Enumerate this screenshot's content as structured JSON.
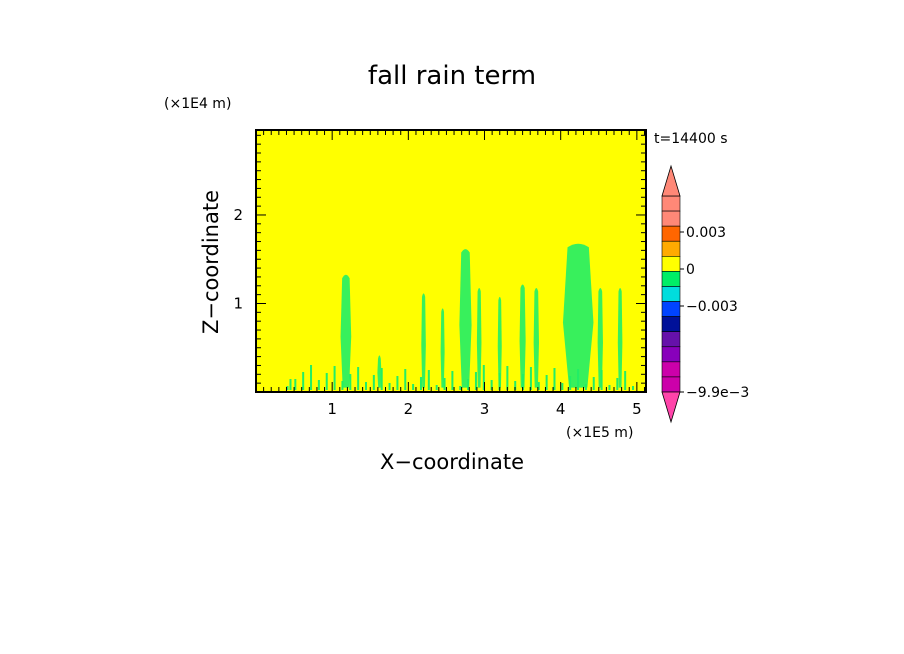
{
  "chart_data": {
    "type": "heatmap",
    "title": "fall rain term",
    "xlabel": "X−coordinate",
    "ylabel": "Z−coordinate",
    "x_unit": "(×1E5 m)",
    "y_unit": "(×1E4 m)",
    "time_label": "t=14400 s",
    "xlim": [
      0,
      5.12
    ],
    "ylim": [
      0,
      2.96
    ],
    "x_ticks": [
      {
        "value": 1,
        "label": "1"
      },
      {
        "value": 2,
        "label": "2"
      },
      {
        "value": 3,
        "label": "3"
      },
      {
        "value": 4,
        "label": "4"
      },
      {
        "value": 5,
        "label": "5"
      }
    ],
    "y_ticks": [
      {
        "value": 1,
        "label": "1"
      },
      {
        "value": 2,
        "label": "2"
      }
    ],
    "background_level": "0 to 0.0015",
    "background_color": "#ffff00",
    "colorbar": {
      "levels": [
        {
          "color": "#cc00aa"
        },
        {
          "color": "#cc00aa"
        },
        {
          "color": "#8800bb"
        },
        {
          "color": "#6611aa"
        },
        {
          "color": "#001199"
        },
        {
          "color": "#0044ff"
        },
        {
          "color": "#00dddd"
        },
        {
          "color": "#00ee66"
        },
        {
          "color": "#ffff00"
        },
        {
          "color": "#ffaa00"
        },
        {
          "color": "#ff6600"
        },
        {
          "color": "#ff8877"
        },
        {
          "color": "#ff8877"
        }
      ],
      "labels": [
        {
          "value": 0.003,
          "label": "0.003"
        },
        {
          "value": 0,
          "label": "0"
        },
        {
          "value": -0.003,
          "label": "−0.003"
        },
        {
          "value": -0.0099,
          "label": "−9.9e−3"
        }
      ],
      "min_triangle_color": "#ff44aa",
      "max_triangle_color": "#ff8877"
    },
    "features": [
      {
        "x": 1.18,
        "z_bottom": 0.05,
        "z_top": 1.33,
        "width": 0.14,
        "level": "slightly negative (green)"
      },
      {
        "x": 1.62,
        "z_bottom": 0.05,
        "z_top": 0.42,
        "width": 0.04,
        "level": "slightly negative (green)"
      },
      {
        "x": 2.2,
        "z_bottom": 0.05,
        "z_top": 1.12,
        "width": 0.06,
        "level": "slightly negative (green)"
      },
      {
        "x": 2.45,
        "z_bottom": 0.05,
        "z_top": 0.95,
        "width": 0.05,
        "level": "slightly negative (green)"
      },
      {
        "x": 2.75,
        "z_bottom": 0.05,
        "z_top": 1.62,
        "width": 0.16,
        "level": "slightly negative (green)"
      },
      {
        "x": 2.93,
        "z_bottom": 0.05,
        "z_top": 1.18,
        "width": 0.06,
        "level": "slightly negative (green)"
      },
      {
        "x": 3.2,
        "z_bottom": 0.05,
        "z_top": 1.08,
        "width": 0.05,
        "level": "slightly negative (green)"
      },
      {
        "x": 3.5,
        "z_bottom": 0.05,
        "z_top": 1.22,
        "width": 0.08,
        "level": "slightly negative (green)"
      },
      {
        "x": 3.68,
        "z_bottom": 0.05,
        "z_top": 1.18,
        "width": 0.07,
        "level": "slightly negative (green)"
      },
      {
        "x": 4.23,
        "z_bottom": 0.05,
        "z_top": 1.68,
        "width": 0.4,
        "level": "slightly negative (green)"
      },
      {
        "x": 4.52,
        "z_bottom": 0.05,
        "z_top": 1.18,
        "width": 0.07,
        "level": "slightly negative (green)"
      },
      {
        "x": 4.78,
        "z_bottom": 0.05,
        "z_top": 1.18,
        "width": 0.06,
        "level": "slightly negative (green)"
      }
    ]
  }
}
